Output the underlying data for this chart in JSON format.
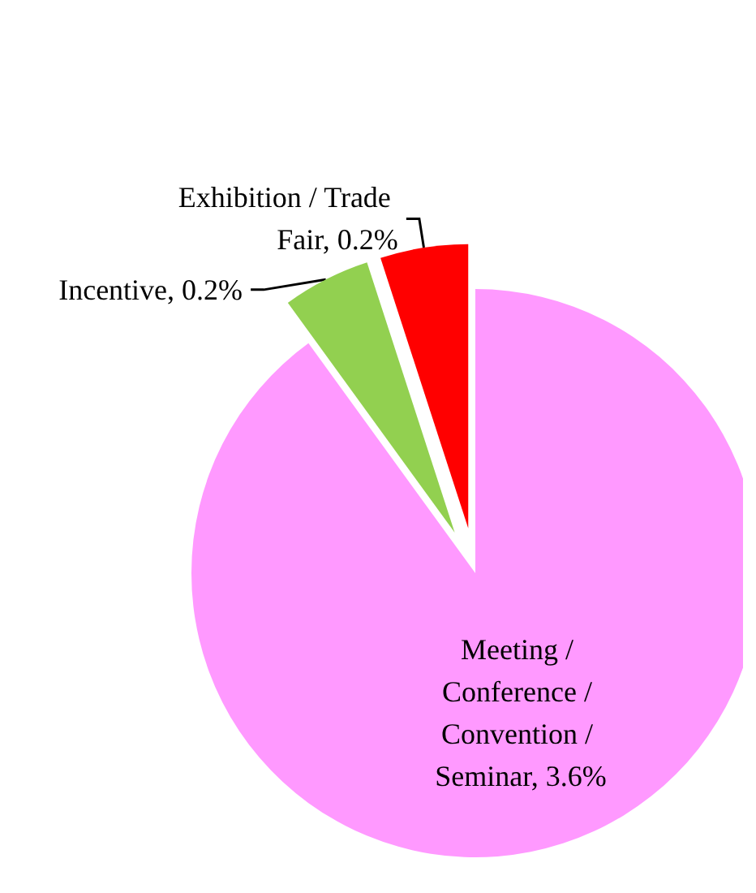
{
  "chart_data": {
    "type": "pie",
    "categories": [
      "Meeting / Conference / Convention / Seminar",
      "Incentive",
      "Exhibition / Trade Fair"
    ],
    "values": [
      3.6,
      0.2,
      0.2
    ],
    "colors": [
      "#ff99ff",
      "#92d050",
      "#ff0000"
    ],
    "value_labels": [
      "3.6%",
      "0.2%",
      "0.2%"
    ],
    "legend": false
  }
}
